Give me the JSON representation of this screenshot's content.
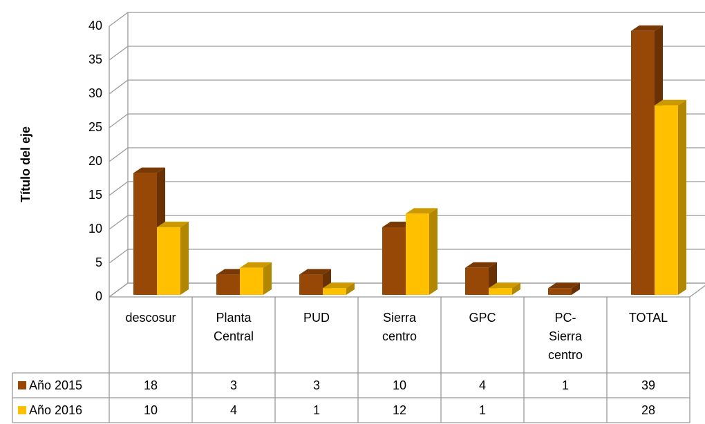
{
  "chart_data": {
    "type": "bar3d",
    "y_axis_label": "Título del eje",
    "categories": [
      "descosur",
      "Planta Central",
      "PUD",
      "Sierra centro",
      "GPC",
      "PC-Sierra centro",
      "TOTAL"
    ],
    "series": [
      {
        "name": "Año 2015",
        "color": "#974706",
        "values": [
          18,
          3,
          3,
          10,
          4,
          1,
          39
        ]
      },
      {
        "name": "Año 2016",
        "color": "#ffc000",
        "values": [
          10,
          4,
          1,
          12,
          1,
          null,
          28
        ]
      }
    ],
    "ylim": [
      0,
      40
    ],
    "yticks": [
      0,
      5,
      10,
      15,
      20,
      25,
      30,
      35,
      40
    ],
    "grid": true,
    "data_table": true
  }
}
